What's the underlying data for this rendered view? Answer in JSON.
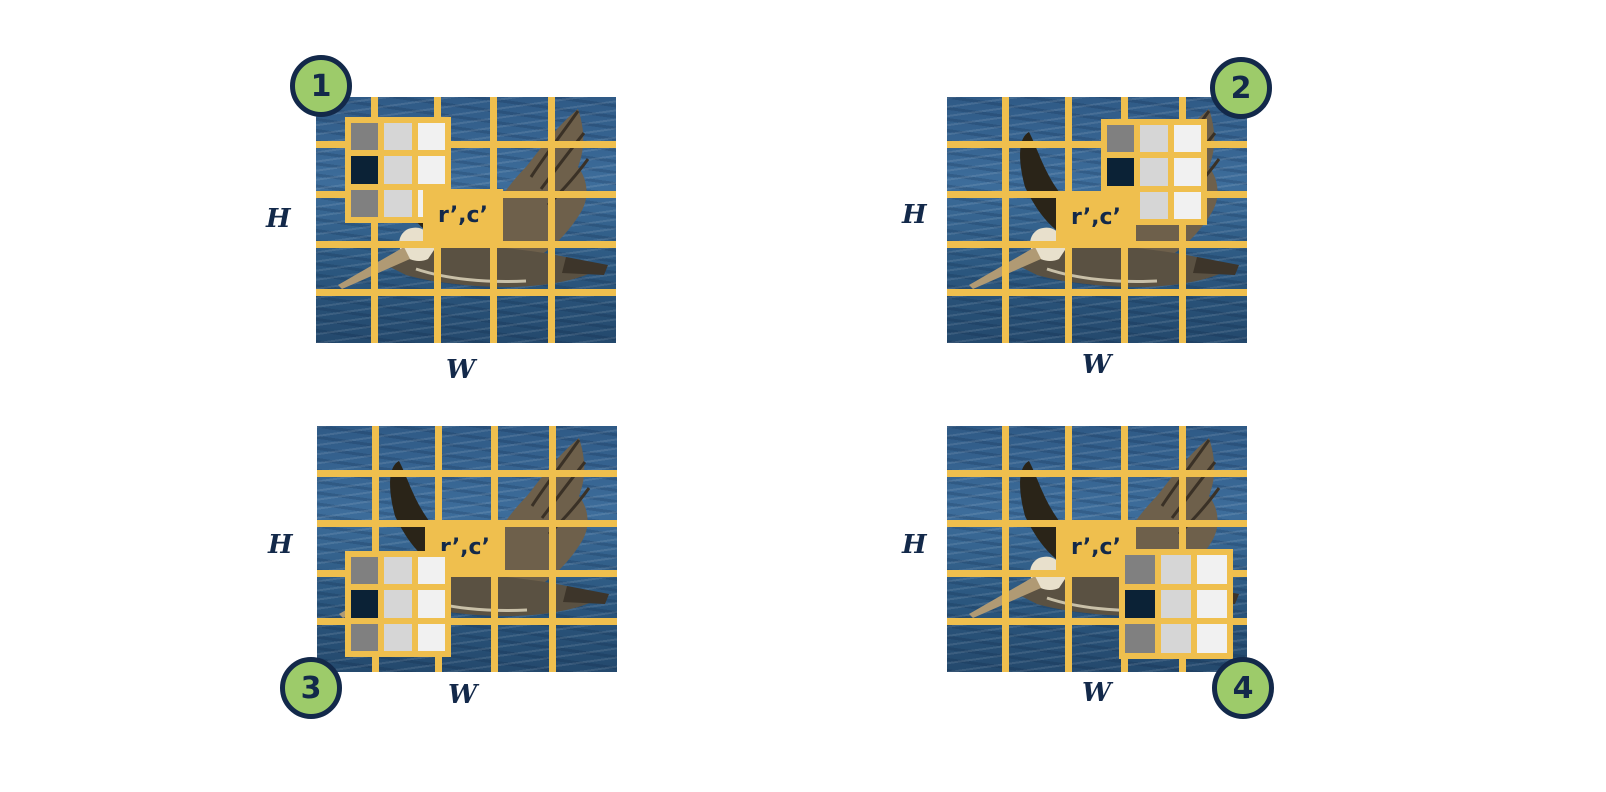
{
  "colors": {
    "grid": "#efbf4e",
    "badge_fill": "#9dcb6a",
    "badge_ring": "#13294a",
    "text": "#13294a",
    "kernel_dark": "#0b2236",
    "kernel_mid": "#808080",
    "kernel_light": "#d6d6d6",
    "kernel_lightest": "#f1f1f1"
  },
  "kernel_colors": [
    "kernel_mid",
    "kernel_light",
    "kernel_lightest",
    "kernel_dark",
    "kernel_light",
    "kernel_lightest",
    "kernel_mid",
    "kernel_light",
    "kernel_lightest"
  ],
  "panels": [
    {
      "badge": "1",
      "target_label": "r’,c’",
      "height_label": "H",
      "width_label": "W"
    },
    {
      "badge": "2",
      "target_label": "r’,c’",
      "height_label": "H",
      "width_label": "W"
    },
    {
      "badge": "3",
      "target_label": "r’,c’",
      "height_label": "H",
      "width_label": "W"
    },
    {
      "badge": "4",
      "target_label": "r’,c’",
      "height_label": "H",
      "width_label": "W"
    }
  ]
}
